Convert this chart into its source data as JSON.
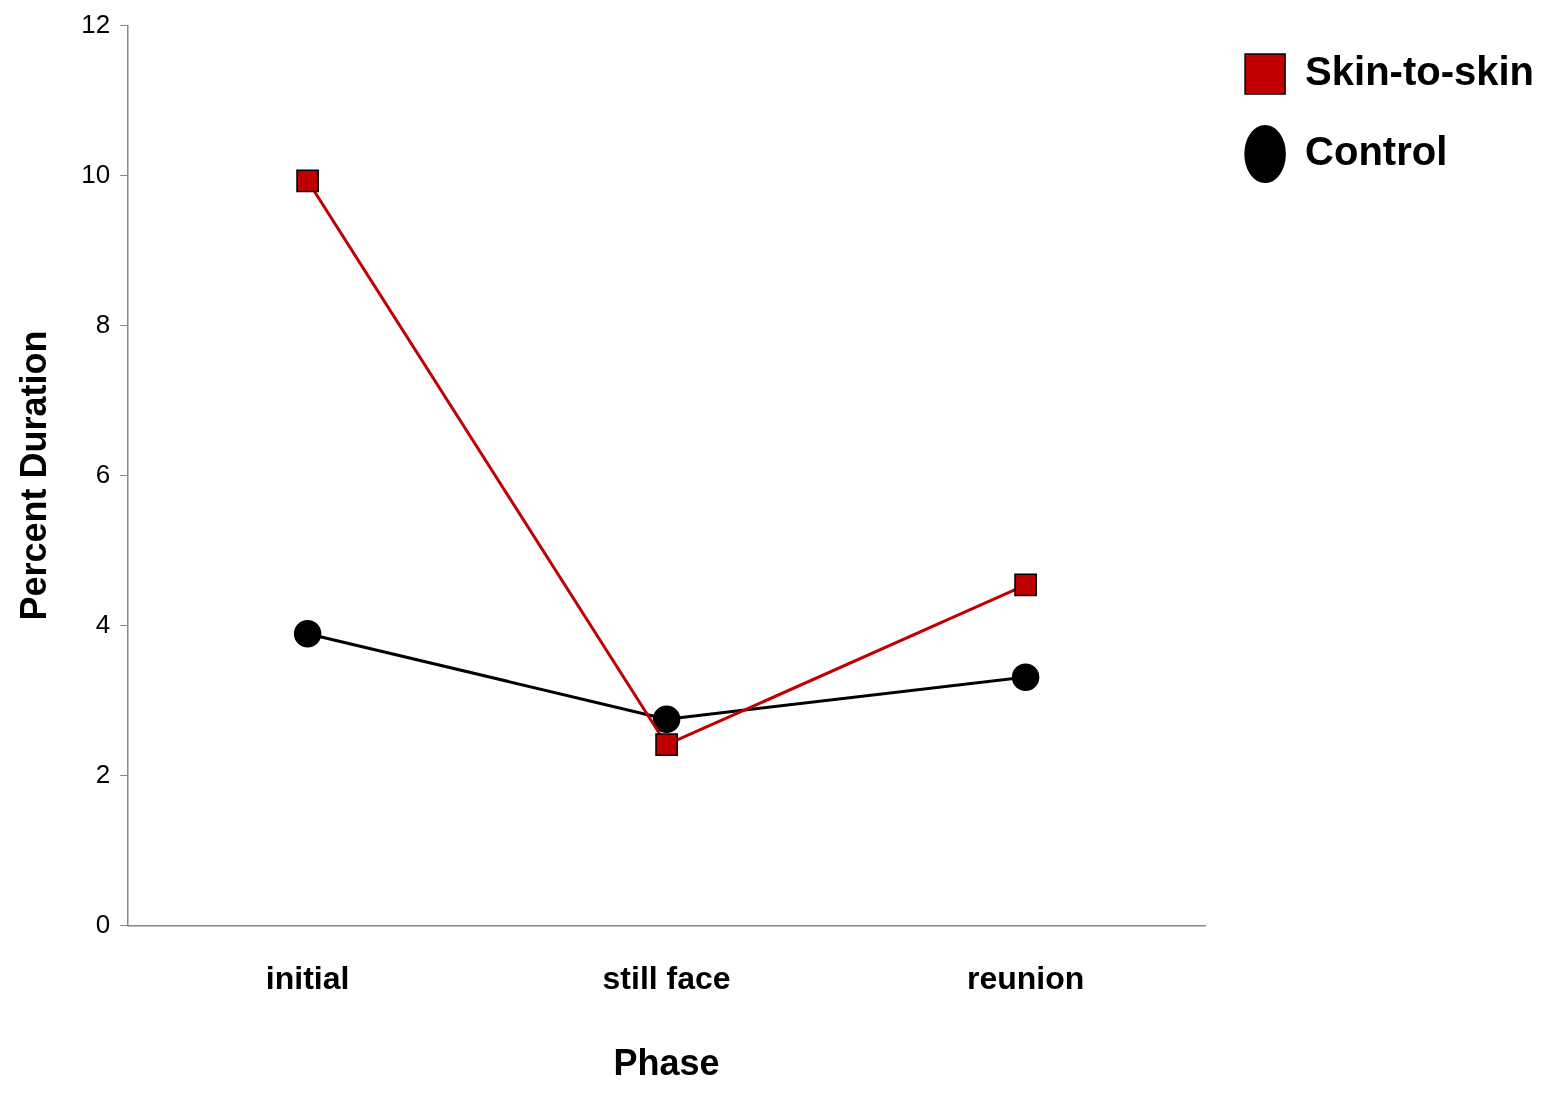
{
  "chart_data": {
    "type": "line",
    "xlabel": "Phase",
    "ylabel": "Percent Duration",
    "categories": [
      "initial",
      "still face",
      "reunion"
    ],
    "series": [
      {
        "name": "Skin-to-skin",
        "color": "#c00000",
        "marker": "square",
        "values": [
          9.93,
          2.41,
          4.54
        ]
      },
      {
        "name": "Control",
        "color": "#000000",
        "marker": "circle",
        "values": [
          3.89,
          2.75,
          3.31
        ]
      }
    ],
    "ylim": [
      0,
      12
    ],
    "yticks": [
      0,
      2,
      4,
      6,
      8,
      10,
      12
    ],
    "grid": false,
    "legend": "top right",
    "line_style": "solid"
  }
}
